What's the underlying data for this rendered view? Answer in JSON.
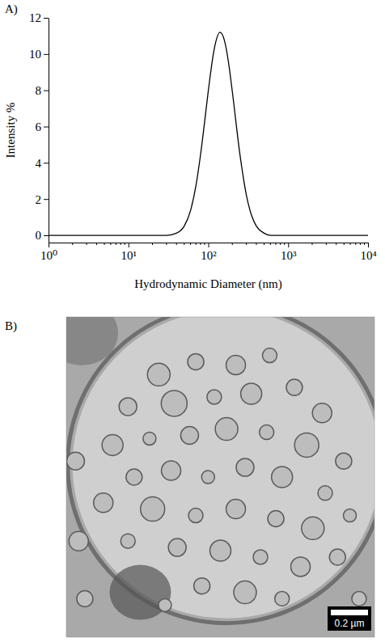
{
  "chart_data": {
    "type": "line",
    "annotations": [
      "A)"
    ],
    "x_label": "Hydrodynamic Diameter (nm)",
    "y_label": "Intensity %",
    "log": "x",
    "color": "#000000",
    "x": [
      1,
      30,
      40,
      50,
      60,
      70,
      80,
      90,
      100,
      120,
      140,
      160,
      180,
      200,
      250,
      300,
      350,
      400,
      500,
      600,
      10000
    ],
    "values": [
      0,
      0,
      0.12,
      0.51,
      1.37,
      2.73,
      4.44,
      6.26,
      7.96,
      10.38,
      11.2,
      10.72,
      9.48,
      7.93,
      4.41,
      2.22,
      1.07,
      0.51,
      0.12,
      0,
      0
    ],
    "xlim": [
      1,
      10000
    ],
    "xticks": [
      {
        "value": 1,
        "label": "10⁰"
      },
      {
        "value": 10,
        "label": "10¹"
      },
      {
        "value": 100,
        "label": "10²"
      },
      {
        "value": 1000,
        "label": "10³"
      },
      {
        "value": 10000,
        "label": "10⁴"
      }
    ],
    "xticks_minor": [
      2,
      3,
      4,
      5,
      6,
      7,
      8,
      9,
      20,
      30,
      40,
      50,
      60,
      70,
      80,
      90,
      200,
      300,
      400,
      500,
      600,
      700,
      800,
      900,
      2000,
      3000,
      4000,
      5000,
      6000,
      7000,
      8000,
      9000
    ],
    "ylim": [
      -0.4,
      12
    ],
    "yticks": [
      0,
      2,
      4,
      6,
      8,
      10,
      12
    ],
    "grid": false
  },
  "image": {
    "label": "B)",
    "scale_bar_label": "0.2 µm"
  }
}
